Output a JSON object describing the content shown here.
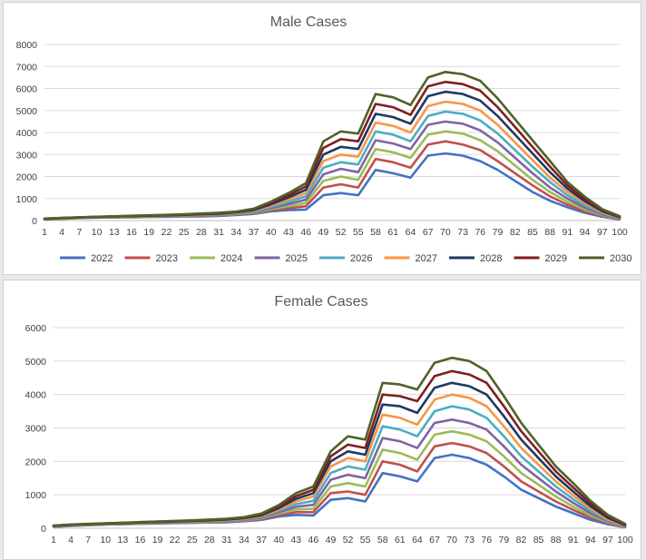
{
  "chart_data": [
    {
      "type": "line",
      "title": "Male Cases",
      "xlabel": "",
      "ylabel": "",
      "ylim": [
        0,
        8000
      ],
      "yticks": [
        0,
        1000,
        2000,
        3000,
        4000,
        5000,
        6000,
        7000,
        8000
      ],
      "xlim": [
        1,
        100
      ],
      "xticks": [
        1,
        4,
        7,
        10,
        13,
        16,
        19,
        22,
        25,
        28,
        31,
        34,
        37,
        40,
        43,
        46,
        49,
        52,
        55,
        58,
        61,
        64,
        67,
        70,
        73,
        76,
        79,
        82,
        85,
        88,
        91,
        94,
        97,
        100
      ],
      "grid": "horizontal",
      "legend": "bottom",
      "x_step": 3,
      "series": [
        {
          "name": "2022",
          "color": "#4472c4",
          "values": [
            50,
            80,
            110,
            130,
            140,
            150,
            160,
            170,
            180,
            190,
            210,
            250,
            300,
            420,
            480,
            500,
            1150,
            1250,
            1150,
            2300,
            2150,
            1950,
            2950,
            3050,
            2950,
            2700,
            2300,
            1800,
            1300,
            900,
            600,
            350,
            170,
            50
          ]
        },
        {
          "name": "2023",
          "color": "#c0504d",
          "values": [
            55,
            85,
            115,
            140,
            150,
            160,
            175,
            185,
            195,
            210,
            230,
            270,
            330,
            470,
            560,
            650,
            1500,
            1650,
            1500,
            2800,
            2650,
            2400,
            3450,
            3600,
            3450,
            3200,
            2700,
            2150,
            1600,
            1100,
            720,
            420,
            200,
            60
          ]
        },
        {
          "name": "2024",
          "color": "#9bbb59",
          "values": [
            60,
            90,
            120,
            145,
            160,
            170,
            185,
            195,
            210,
            225,
            250,
            290,
            360,
            520,
            650,
            800,
            1800,
            2000,
            1850,
            3250,
            3100,
            2850,
            3900,
            4050,
            3950,
            3650,
            3150,
            2500,
            1850,
            1300,
            850,
            500,
            240,
            75
          ]
        },
        {
          "name": "2025",
          "color": "#8064a2",
          "values": [
            65,
            95,
            125,
            150,
            165,
            180,
            195,
            205,
            220,
            240,
            265,
            310,
            390,
            570,
            750,
            950,
            2100,
            2350,
            2200,
            3650,
            3500,
            3250,
            4350,
            4500,
            4400,
            4100,
            3550,
            2850,
            2150,
            1500,
            1000,
            590,
            280,
            90
          ]
        },
        {
          "name": "2026",
          "color": "#4bacc6",
          "values": [
            70,
            100,
            130,
            155,
            170,
            185,
            200,
            215,
            230,
            255,
            280,
            330,
            420,
            620,
            850,
            1100,
            2400,
            2650,
            2550,
            4050,
            3900,
            3600,
            4750,
            4950,
            4850,
            4550,
            3950,
            3200,
            2450,
            1750,
            1150,
            690,
            330,
            110
          ]
        },
        {
          "name": "2027",
          "color": "#f79646",
          "values": [
            75,
            105,
            135,
            160,
            175,
            190,
            210,
            225,
            240,
            270,
            300,
            350,
            450,
            680,
            950,
            1250,
            2700,
            3000,
            2900,
            4450,
            4300,
            4000,
            5200,
            5400,
            5300,
            5000,
            4350,
            3550,
            2750,
            1950,
            1300,
            790,
            380,
            130
          ]
        },
        {
          "name": "2028",
          "color": "#1f3864",
          "values": [
            80,
            110,
            140,
            165,
            180,
            200,
            220,
            235,
            255,
            285,
            315,
            370,
            480,
            740,
            1050,
            1400,
            3000,
            3350,
            3250,
            4850,
            4700,
            4400,
            5650,
            5850,
            5750,
            5450,
            4750,
            3900,
            3050,
            2200,
            1450,
            880,
            420,
            150
          ]
        },
        {
          "name": "2029",
          "color": "#7f1f1f",
          "values": [
            85,
            115,
            145,
            170,
            190,
            210,
            230,
            245,
            270,
            300,
            335,
            390,
            510,
            800,
            1150,
            1550,
            3300,
            3700,
            3600,
            5300,
            5150,
            4800,
            6100,
            6300,
            6200,
            5900,
            5150,
            4250,
            3350,
            2450,
            1600,
            980,
            470,
            170
          ]
        },
        {
          "name": "2030",
          "color": "#4f6228",
          "values": [
            90,
            120,
            150,
            175,
            195,
            220,
            240,
            260,
            285,
            320,
            355,
            410,
            540,
            860,
            1250,
            1700,
            3600,
            4050,
            3950,
            5750,
            5600,
            5250,
            6500,
            6750,
            6650,
            6350,
            5550,
            4600,
            3650,
            2700,
            1750,
            1080,
            520,
            200
          ]
        }
      ]
    },
    {
      "type": "line",
      "title": "Female Cases",
      "xlabel": "",
      "ylabel": "",
      "ylim": [
        0,
        6000
      ],
      "yticks": [
        0,
        1000,
        2000,
        3000,
        4000,
        5000,
        6000
      ],
      "xlim": [
        1,
        100
      ],
      "xticks": [
        1,
        4,
        7,
        10,
        13,
        16,
        19,
        22,
        25,
        28,
        31,
        34,
        37,
        40,
        43,
        46,
        49,
        52,
        55,
        58,
        61,
        64,
        67,
        70,
        73,
        76,
        79,
        82,
        85,
        88,
        91,
        94,
        97,
        100
      ],
      "grid": "horizontal",
      "legend": "none",
      "x_step": 3,
      "series": [
        {
          "name": "2022",
          "color": "#4472c4",
          "values": [
            40,
            70,
            90,
            110,
            120,
            130,
            140,
            150,
            160,
            170,
            180,
            210,
            250,
            350,
            400,
            380,
            850,
            900,
            800,
            1650,
            1550,
            1400,
            2100,
            2200,
            2100,
            1900,
            1550,
            1150,
            900,
            650,
            450,
            250,
            120,
            30
          ]
        },
        {
          "name": "2023",
          "color": "#c0504d",
          "values": [
            45,
            75,
            95,
            115,
            125,
            135,
            150,
            160,
            170,
            180,
            195,
            225,
            275,
            400,
            480,
            480,
            1050,
            1100,
            1000,
            2000,
            1900,
            1700,
            2450,
            2550,
            2450,
            2250,
            1850,
            1400,
            1100,
            800,
            550,
            320,
            150,
            40
          ]
        },
        {
          "name": "2024",
          "color": "#9bbb59",
          "values": [
            50,
            80,
            100,
            120,
            130,
            140,
            155,
            165,
            175,
            190,
            205,
            240,
            295,
            440,
            560,
            580,
            1250,
            1350,
            1250,
            2350,
            2250,
            2050,
            2800,
            2900,
            2800,
            2600,
            2150,
            1650,
            1300,
            950,
            650,
            380,
            180,
            50
          ]
        },
        {
          "name": "2025",
          "color": "#8064a2",
          "values": [
            55,
            85,
            105,
            125,
            135,
            150,
            160,
            175,
            185,
            200,
            215,
            255,
            315,
            480,
            640,
            700,
            1450,
            1600,
            1500,
            2700,
            2600,
            2400,
            3150,
            3250,
            3150,
            2950,
            2450,
            1900,
            1500,
            1100,
            760,
            450,
            210,
            60
          ]
        },
        {
          "name": "2026",
          "color": "#4bacc6",
          "values": [
            60,
            90,
            110,
            130,
            145,
            155,
            170,
            185,
            195,
            210,
            230,
            270,
            340,
            520,
            720,
            820,
            1650,
            1850,
            1750,
            3050,
            2950,
            2750,
            3500,
            3650,
            3550,
            3300,
            2750,
            2150,
            1700,
            1250,
            870,
            520,
            240,
            70
          ]
        },
        {
          "name": "2027",
          "color": "#f79646",
          "values": [
            65,
            95,
            115,
            135,
            150,
            165,
            180,
            195,
            205,
            225,
            245,
            285,
            360,
            560,
            800,
            950,
            1850,
            2100,
            2000,
            3400,
            3300,
            3100,
            3850,
            4000,
            3900,
            3650,
            3050,
            2400,
            1900,
            1400,
            980,
            590,
            270,
            80
          ]
        },
        {
          "name": "2028",
          "color": "#1f3864",
          "values": [
            70,
            100,
            120,
            140,
            155,
            170,
            185,
            200,
            215,
            235,
            260,
            300,
            385,
            600,
            880,
            1050,
            2000,
            2300,
            2200,
            3700,
            3650,
            3450,
            4200,
            4350,
            4250,
            4000,
            3350,
            2650,
            2100,
            1550,
            1100,
            660,
            310,
            90
          ]
        },
        {
          "name": "2029",
          "color": "#7f1f1f",
          "values": [
            75,
            105,
            125,
            145,
            160,
            175,
            195,
            210,
            225,
            245,
            270,
            315,
            410,
            640,
            960,
            1150,
            2150,
            2500,
            2400,
            4000,
            3950,
            3800,
            4550,
            4700,
            4600,
            4350,
            3650,
            2900,
            2300,
            1700,
            1220,
            740,
            350,
            110
          ]
        },
        {
          "name": "2030",
          "color": "#4f6228",
          "values": [
            80,
            110,
            130,
            150,
            165,
            185,
            200,
            220,
            235,
            260,
            285,
            330,
            440,
            690,
            1050,
            1250,
            2300,
            2750,
            2650,
            4350,
            4300,
            4150,
            4950,
            5100,
            5000,
            4700,
            3950,
            3150,
            2500,
            1850,
            1350,
            820,
            400,
            130
          ]
        }
      ]
    }
  ]
}
